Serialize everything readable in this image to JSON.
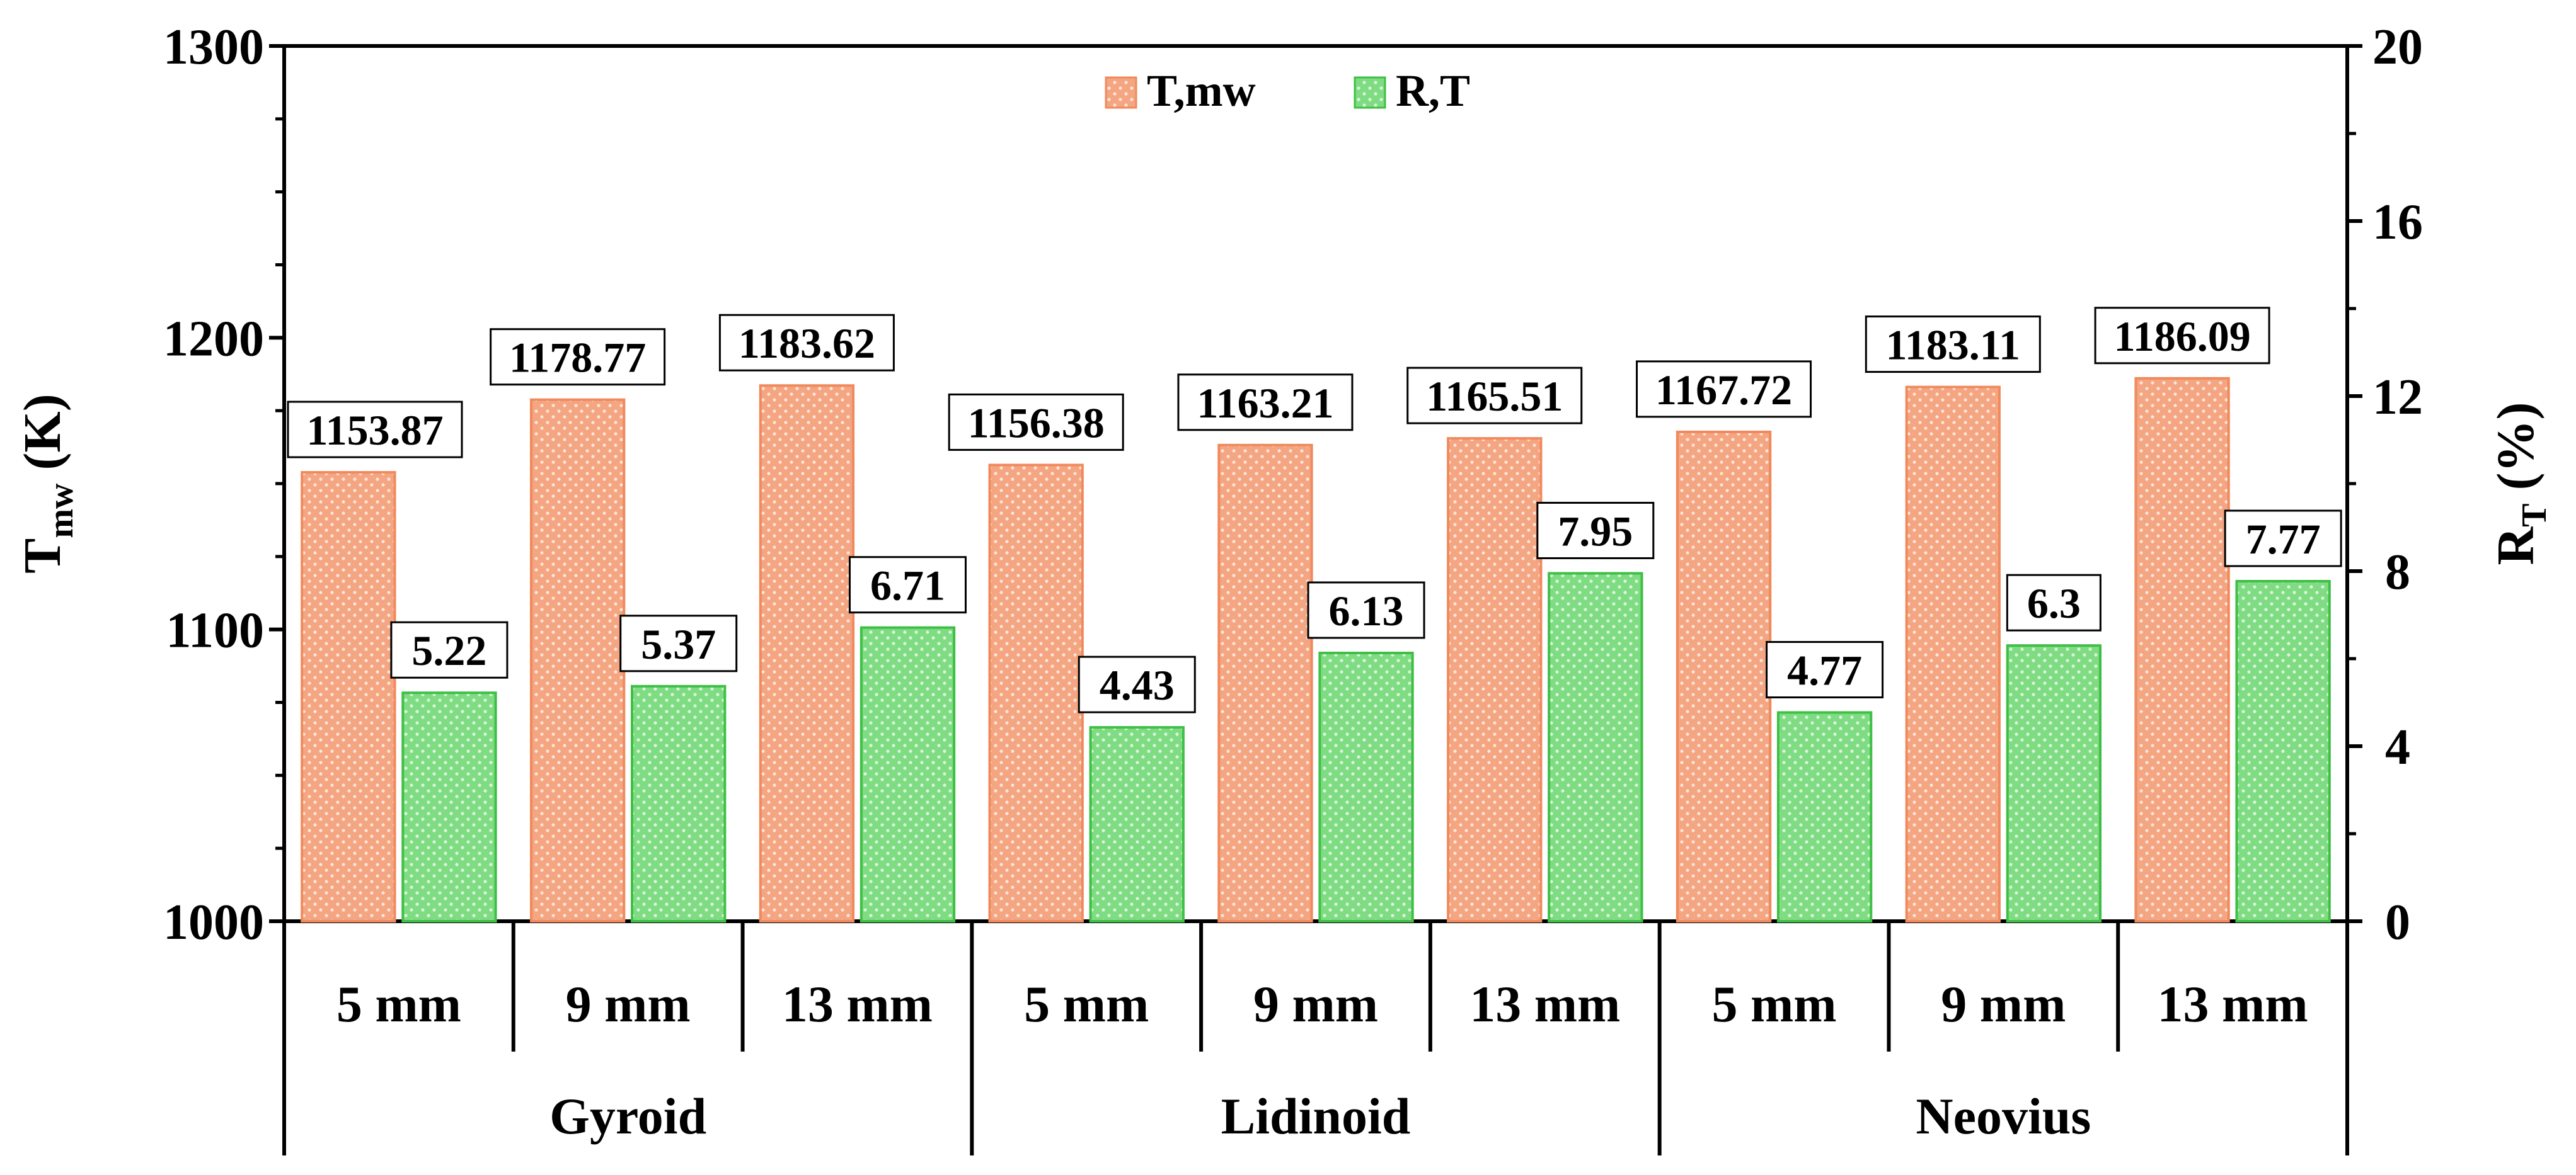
{
  "chart_data": {
    "type": "bar",
    "groups": [
      "Gyroid",
      "Lidinoid",
      "Neovius"
    ],
    "categories": [
      "5 mm",
      "9 mm",
      "13 mm",
      "5 mm",
      "9 mm",
      "13 mm",
      "5 mm",
      "9 mm",
      "13 mm"
    ],
    "series": [
      {
        "name": "T,mw",
        "axis": "left",
        "color": "#f4a582",
        "values": [
          1153.87,
          1178.77,
          1183.62,
          1156.38,
          1163.21,
          1165.51,
          1167.72,
          1183.11,
          1186.09
        ],
        "labels": [
          "1153.87",
          "1178.77",
          "1183.62",
          "1156.38",
          "1163.21",
          "1165.51",
          "1167.72",
          "1183.11",
          "1186.09"
        ]
      },
      {
        "name": "R,T",
        "axis": "right",
        "color": "#86e08a",
        "values": [
          5.22,
          5.37,
          6.71,
          4.43,
          6.13,
          7.95,
          4.77,
          6.3,
          7.77
        ],
        "labels": [
          "5.22",
          "5.37",
          "6.71",
          "4.43",
          "6.13",
          "7.95",
          "4.77",
          "6.3",
          "7.77"
        ]
      }
    ],
    "y_left": {
      "label_main": "T",
      "label_sub": "mw",
      "label_tail": " (K)",
      "lim": [
        1000,
        1300
      ],
      "ticks": [
        1000,
        1100,
        1200,
        1300
      ],
      "tick_labels": [
        "1000",
        "1100",
        "1200",
        "1300"
      ]
    },
    "y_right": {
      "label_main": "R",
      "label_sub": "T",
      "label_tail": " (%)",
      "lim": [
        0,
        20
      ],
      "ticks": [
        0,
        4,
        8,
        12,
        16,
        20
      ],
      "tick_labels": [
        "0",
        "4",
        "8",
        "12",
        "16",
        "20"
      ]
    },
    "legend": {
      "position": "top-center",
      "entries": [
        "T,mw",
        "R,T"
      ]
    }
  }
}
